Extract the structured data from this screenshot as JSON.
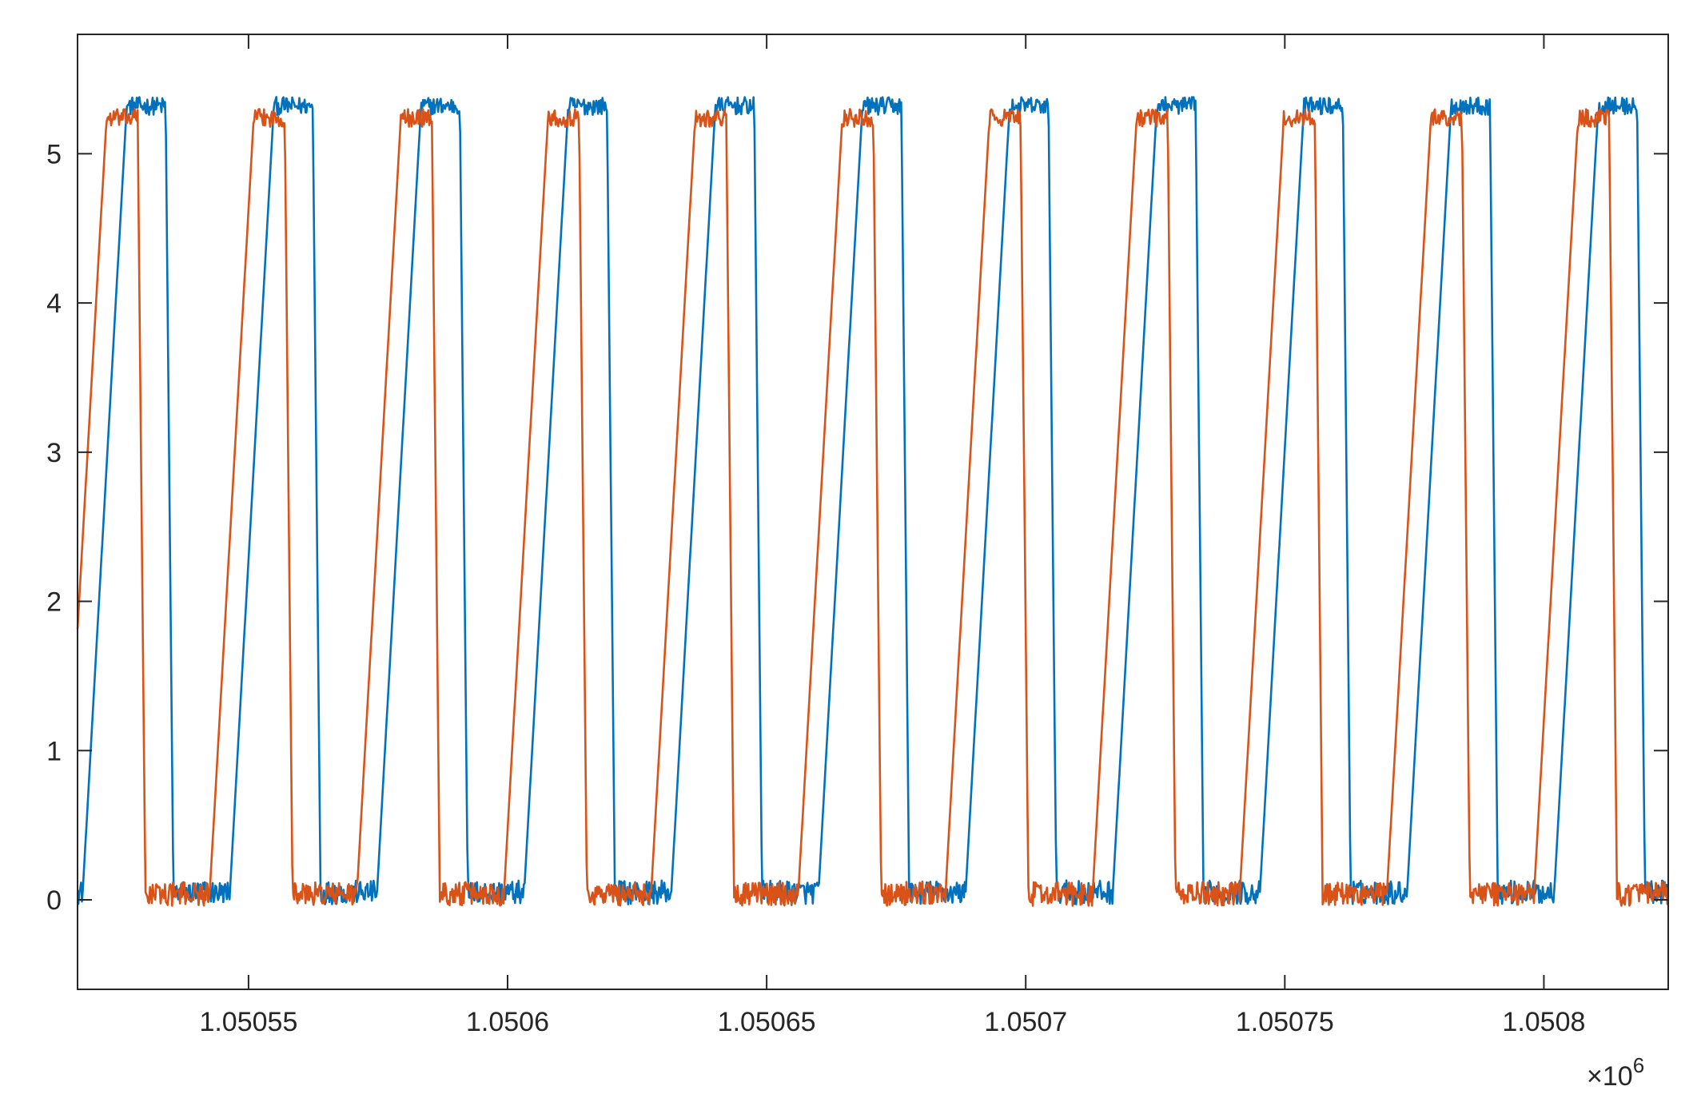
{
  "chart_data": {
    "type": "line",
    "title": "",
    "xlabel": "",
    "ylabel": "",
    "xlim": [
      1.050517,
      1.050824
    ],
    "ylim": [
      -0.6,
      5.8
    ],
    "grid": false,
    "x_exponent_label": "×10",
    "x_exponent_power": "6",
    "xticks": [
      {
        "value": 1.05055,
        "label": "1.05055"
      },
      {
        "value": 1.0506,
        "label": "1.0506"
      },
      {
        "value": 1.05065,
        "label": "1.05065"
      },
      {
        "value": 1.0507,
        "label": "1.0507"
      },
      {
        "value": 1.05075,
        "label": "1.05075"
      },
      {
        "value": 1.0508,
        "label": "1.0508"
      }
    ],
    "yticks": [
      {
        "value": 0,
        "label": "0"
      },
      {
        "value": 1,
        "label": "1"
      },
      {
        "value": 2,
        "label": "2"
      },
      {
        "value": 3,
        "label": "3"
      },
      {
        "value": 4,
        "label": "4"
      },
      {
        "value": 5,
        "label": "5"
      }
    ],
    "series": [
      {
        "color": "#0072BD",
        "period": 2.84e-05,
        "rise_start": 1.050518,
        "rise_end": 1.0505265,
        "fall_start": 1.050534,
        "fall_end": 1.0505355,
        "high": 5.32,
        "low": 0.05
      },
      {
        "color": "#D95319",
        "period": 2.84e-05,
        "rise_start": 1.0505425,
        "rise_end": 1.050551,
        "fall_start": 1.050557,
        "fall_end": 1.0505585,
        "high": 5.24,
        "low": 0.04
      }
    ]
  }
}
